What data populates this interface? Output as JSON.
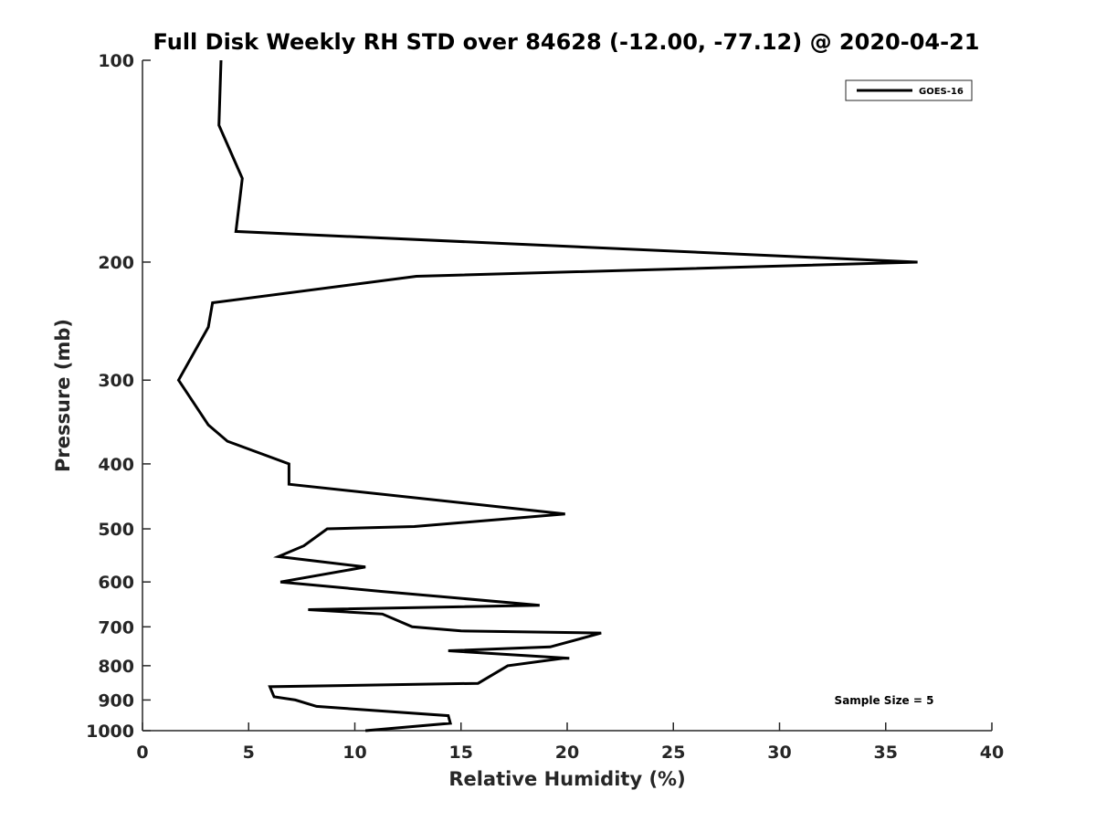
{
  "chart_data": {
    "type": "line",
    "title": "Full Disk Weekly RH STD over 84628 (-12.00, -77.12) @ 2020-04-21",
    "xlabel": "Relative Humidity (%)",
    "ylabel": "Pressure (mb)",
    "xlim": [
      0,
      40
    ],
    "ylim": [
      100,
      1000
    ],
    "yscale": "log",
    "y_reversed": true,
    "x_ticks": [
      "0",
      "5",
      "10",
      "15",
      "20",
      "25",
      "30",
      "35",
      "40"
    ],
    "y_ticks": [
      "100",
      "200",
      "300",
      "400",
      "500",
      "600",
      "700",
      "800",
      "900",
      "1000"
    ],
    "grid": false,
    "legend_position": "top-right",
    "annotation": "Sample Size = 5",
    "series": [
      {
        "name": "GOES-16",
        "color": "#000000",
        "points": [
          [
            3.7,
            100
          ],
          [
            3.6,
            125
          ],
          [
            4.7,
            150
          ],
          [
            4.4,
            180
          ],
          [
            36.5,
            200
          ],
          [
            12.9,
            210
          ],
          [
            3.3,
            230
          ],
          [
            3.1,
            250
          ],
          [
            1.7,
            300
          ],
          [
            2.0,
            310
          ],
          [
            3.1,
            350
          ],
          [
            4.0,
            370
          ],
          [
            6.9,
            400
          ],
          [
            6.9,
            429
          ],
          [
            19.9,
            475
          ],
          [
            12.8,
            496
          ],
          [
            8.7,
            500
          ],
          [
            7.6,
            530
          ],
          [
            6.4,
            550
          ],
          [
            10.5,
            570
          ],
          [
            6.5,
            600
          ],
          [
            11.3,
            620
          ],
          [
            18.7,
            650
          ],
          [
            7.8,
            660
          ],
          [
            11.3,
            670
          ],
          [
            12.7,
            700
          ],
          [
            15.0,
            710
          ],
          [
            21.6,
            715
          ],
          [
            19.2,
            750
          ],
          [
            14.4,
            760
          ],
          [
            20.1,
            780
          ],
          [
            19.8,
            780
          ],
          [
            17.2,
            800
          ],
          [
            15.8,
            850
          ],
          [
            6.0,
            860
          ],
          [
            6.2,
            890
          ],
          [
            7.2,
            900
          ],
          [
            8.2,
            920
          ],
          [
            14.4,
            950
          ],
          [
            14.5,
            975
          ],
          [
            10.5,
            1000
          ]
        ]
      }
    ]
  }
}
